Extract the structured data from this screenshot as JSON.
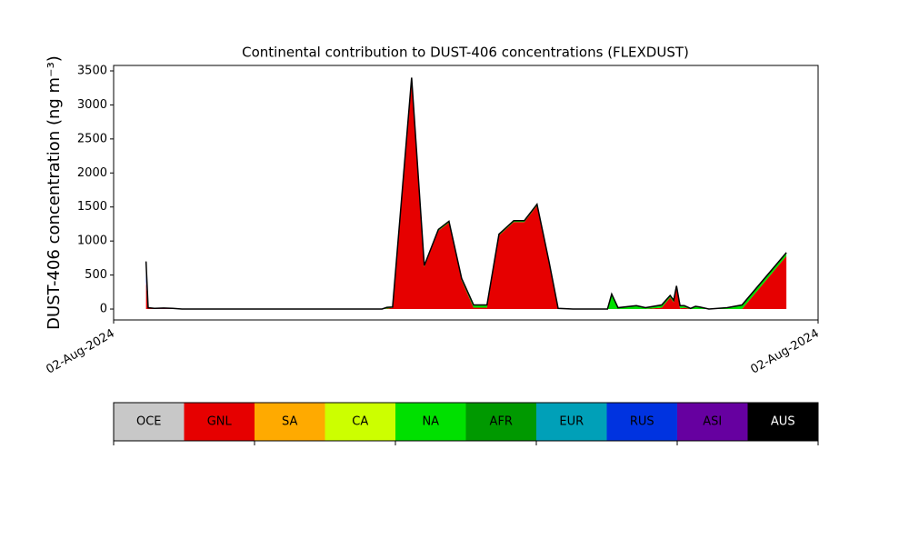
{
  "chart_data": {
    "type": "stacked-area",
    "title": "Continental contribution to DUST-406 concentrations (FLEXDUST)",
    "y_label": "DUST-406 concentration (ng m⁻³)",
    "xlim": [
      0,
      100
    ],
    "xticks": [
      {
        "value": 0,
        "label": "02-Aug-2024"
      },
      {
        "value": 100,
        "label": "02-Aug-2024"
      }
    ],
    "ylim": [
      -160,
      3580
    ],
    "yticks": [
      0,
      500,
      1000,
      1500,
      2000,
      2500,
      3000,
      3500
    ],
    "x": [
      4.6,
      4.9,
      5.8,
      7.1,
      8.4,
      9.7,
      38.1,
      38.8,
      39.6,
      42.3,
      44.1,
      46.1,
      47.6,
      49.4,
      51.1,
      53.0,
      54.7,
      56.8,
      58.3,
      60.1,
      61.8,
      63.1,
      65.2,
      70.1,
      70.7,
      71.6,
      74.2,
      75.5,
      77.8,
      79.0,
      79.5,
      79.9,
      80.4,
      81.0,
      81.9,
      82.6,
      83.2,
      84.5,
      87.1,
      89.2,
      95.5
    ],
    "series": [
      {
        "name": "GNL",
        "color": "#e60000",
        "values": [
          400,
          10,
          5,
          5,
          5,
          0,
          0,
          5,
          20,
          3380,
          620,
          1150,
          1270,
          420,
          20,
          20,
          1080,
          1280,
          1280,
          1520,
          680,
          0,
          0,
          0,
          0,
          0,
          0,
          0,
          20,
          170,
          100,
          320,
          10,
          20,
          0,
          0,
          0,
          0,
          0,
          0,
          780
        ]
      },
      {
        "name": "NA",
        "color": "#00e000",
        "values": [
          0,
          0,
          0,
          0,
          0,
          0,
          0,
          20,
          10,
          20,
          20,
          20,
          20,
          30,
          40,
          40,
          20,
          20,
          20,
          20,
          20,
          10,
          0,
          0,
          220,
          20,
          50,
          20,
          40,
          30,
          30,
          20,
          40,
          30,
          10,
          40,
          30,
          0,
          20,
          60,
          50
        ]
      },
      {
        "name": "RUS",
        "color": "#0033e0",
        "values": [
          300,
          10,
          5,
          10,
          5,
          0,
          0,
          0,
          0,
          0,
          0,
          0,
          0,
          0,
          0,
          0,
          0,
          0,
          0,
          0,
          0,
          0,
          0,
          0,
          0,
          0,
          0,
          0,
          0,
          0,
          0,
          0,
          0,
          0,
          0,
          0,
          0,
          0,
          0,
          0,
          0
        ]
      }
    ],
    "legend": [
      {
        "name": "OCE",
        "color": "#c8c8c8"
      },
      {
        "name": "GNL",
        "color": "#e60000"
      },
      {
        "name": "SA",
        "color": "#ffaa00"
      },
      {
        "name": "CA",
        "color": "#ccff00"
      },
      {
        "name": "NA",
        "color": "#00e000"
      },
      {
        "name": "AFR",
        "color": "#009900"
      },
      {
        "name": "EUR",
        "color": "#00a0b8"
      },
      {
        "name": "RUS",
        "color": "#0033e0"
      },
      {
        "name": "ASI",
        "color": "#6600a0"
      },
      {
        "name": "AUS",
        "color": "#000000"
      }
    ]
  }
}
